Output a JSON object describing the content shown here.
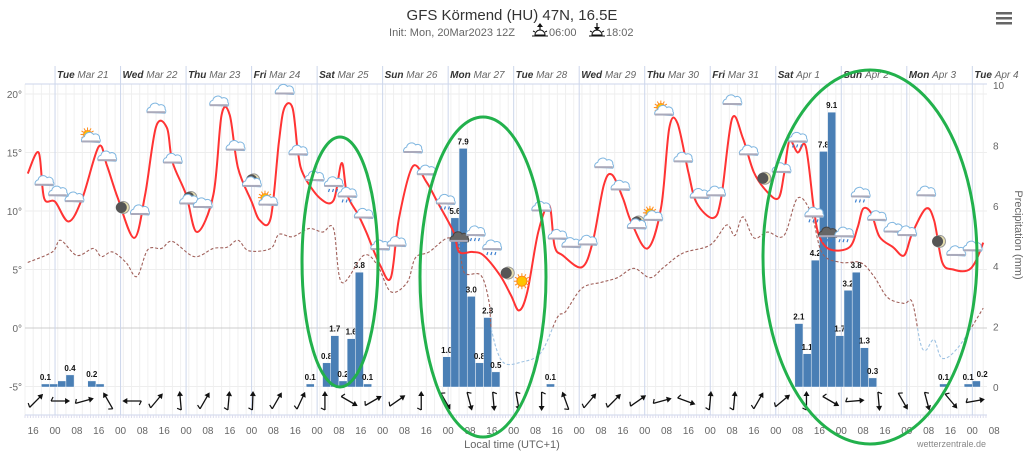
{
  "header": {
    "title": "GFS Körmend (HU) 47N, 16.5E",
    "init": "Init: Mon, 20Mar2023 12Z",
    "sunrise": "06:00",
    "sunset": "18:02",
    "menu_icon": "hamburger-menu-icon"
  },
  "footer": {
    "xlabel": "Local time (UTC+1)",
    "credit": "wetterzentrale.de"
  },
  "colors": {
    "temperature": "#ff3333",
    "dewpoint_above_zero": "#a0605a",
    "dewpoint_below_zero": "#9fc3e3",
    "precipitation": "#4a7fb5",
    "annotation": "#22b14c"
  },
  "chart_data": {
    "type": "meteogram",
    "title": "GFS Körmend (HU) 47N, 16.5E",
    "year": 2023,
    "x_range": [
      "03-20T13:00",
      "04-04T09:00"
    ],
    "x_tick_labels": [
      "16",
      "00",
      "08",
      "16",
      "00",
      "08",
      "16",
      "00",
      "08",
      "16",
      "00",
      "08",
      "16",
      "00",
      "08",
      "16",
      "00",
      "08",
      "16",
      "00",
      "08",
      "16",
      "00",
      "08",
      "16",
      "00",
      "08",
      "16",
      "00",
      "08",
      "16",
      "00",
      "08",
      "16",
      "00",
      "08",
      "16",
      "00",
      "08",
      "16",
      "00",
      "08",
      "16",
      "00",
      "08"
    ],
    "day_labels": [
      {
        "dow": "Tue",
        "date": "Mar 21"
      },
      {
        "dow": "Wed",
        "date": "Mar 22"
      },
      {
        "dow": "Thu",
        "date": "Mar 23"
      },
      {
        "dow": "Fri",
        "date": "Mar 24"
      },
      {
        "dow": "Sat",
        "date": "Mar 25"
      },
      {
        "dow": "Sun",
        "date": "Mar 26"
      },
      {
        "dow": "Mon",
        "date": "Mar 27"
      },
      {
        "dow": "Tue",
        "date": "Mar 28"
      },
      {
        "dow": "Wed",
        "date": "Mar 29"
      },
      {
        "dow": "Thu",
        "date": "Mar 30"
      },
      {
        "dow": "Fri",
        "date": "Mar 31"
      },
      {
        "dow": "Sat",
        "date": "Apr 1"
      },
      {
        "dow": "Sun",
        "date": "Apr 2"
      },
      {
        "dow": "Mon",
        "date": "Apr 3"
      },
      {
        "dow": "Tue",
        "date": "Apr 4"
      }
    ],
    "y_left": {
      "range": [
        -5,
        20
      ],
      "tick_labels": [
        "20°",
        "15°",
        "10°",
        "5°",
        "0°",
        "-5°"
      ],
      "ticks": [
        20,
        15,
        10,
        5,
        0,
        -5
      ]
    },
    "y_right": {
      "title": "Precipitation (mm)",
      "range": [
        0,
        10
      ],
      "tick_labels": [
        "10",
        "8",
        "6",
        "4",
        "2",
        "0"
      ],
      "ticks": [
        10,
        8,
        6,
        4,
        2,
        0
      ]
    },
    "grid": true,
    "temperature": [
      [
        "03-20T14:00",
        13.2
      ],
      [
        "03-20T18:00",
        15.0
      ],
      [
        "03-20T20:00",
        11.1
      ],
      [
        "03-21T00:00",
        10.8
      ],
      [
        "03-21T05:00",
        9.1
      ],
      [
        "03-21T10:00",
        11.1
      ],
      [
        "03-21T16:00",
        15.5
      ],
      [
        "03-21T19:00",
        13.9
      ],
      [
        "03-21T23:00",
        11.1
      ],
      [
        "03-22T05:00",
        7.7
      ],
      [
        "03-22T09:00",
        11.4
      ],
      [
        "03-22T13:00",
        17.2
      ],
      [
        "03-22T17:00",
        17.1
      ],
      [
        "03-22T19:00",
        14.2
      ],
      [
        "03-23T00:00",
        11.4
      ],
      [
        "03-23T04:00",
        8.2
      ],
      [
        "03-23T10:00",
        11.4
      ],
      [
        "03-23T13:00",
        18.2
      ],
      [
        "03-23T16:00",
        18.2
      ],
      [
        "03-23T19:00",
        13.7
      ],
      [
        "03-24T00:00",
        10.8
      ],
      [
        "03-24T03:00",
        9.2
      ],
      [
        "03-24T07:00",
        9.4
      ],
      [
        "03-24T10:00",
        15.9
      ],
      [
        "03-24T12:00",
        18.8
      ],
      [
        "03-24T15:00",
        18.8
      ],
      [
        "03-24T17:00",
        15.0
      ],
      [
        "03-24T19:00",
        13.1
      ],
      [
        "03-25T01:00",
        11.1
      ],
      [
        "03-25T06:00",
        10.9
      ],
      [
        "03-25T09:00",
        14.1
      ],
      [
        "03-25T11:00",
        11.4
      ],
      [
        "03-25T15:00",
        9.7
      ],
      [
        "03-25T18:00",
        8.2
      ],
      [
        "03-25T23:00",
        5.4
      ],
      [
        "03-26T03:00",
        4.3
      ],
      [
        "03-26T06:00",
        9.4
      ],
      [
        "03-26T11:00",
        13.8
      ],
      [
        "03-26T16:00",
        12.5
      ],
      [
        "03-26T20:00",
        10.8
      ],
      [
        "03-27T02:00",
        8.2
      ],
      [
        "03-27T04:00",
        6.5
      ],
      [
        "03-27T09:00",
        6.5
      ],
      [
        "03-27T13:00",
        6.2
      ],
      [
        "03-27T19:00",
        4.5
      ],
      [
        "03-27T23:00",
        2.8
      ],
      [
        "03-28T02:00",
        1.5
      ],
      [
        "03-28T05:00",
        3.1
      ],
      [
        "03-28T09:00",
        8.2
      ],
      [
        "03-28T13:00",
        10.5
      ],
      [
        "03-28T15:00",
        7.0
      ],
      [
        "03-28T18:00",
        6.2
      ],
      [
        "03-29T01:00",
        5.2
      ],
      [
        "03-29T05:00",
        7.4
      ],
      [
        "03-29T09:00",
        12.2
      ],
      [
        "03-29T12:00",
        13.1
      ],
      [
        "03-29T16:00",
        11.1
      ],
      [
        "03-29T19:00",
        9.1
      ],
      [
        "03-30T01:00",
        6.8
      ],
      [
        "03-30T06:00",
        10.3
      ],
      [
        "03-30T09:00",
        17.1
      ],
      [
        "03-30T12:00",
        17.5
      ],
      [
        "03-30T16:00",
        13.3
      ],
      [
        "03-30T19:00",
        10.7
      ],
      [
        "03-31T01:00",
        9.4
      ],
      [
        "03-31T04:00",
        11.1
      ],
      [
        "03-31T08:00",
        17.9
      ],
      [
        "03-31T12:00",
        16.2
      ],
      [
        "03-31T16:00",
        13.3
      ],
      [
        "03-31T21:00",
        11.6
      ],
      [
        "04-01T01:00",
        11.1
      ],
      [
        "04-01T03:00",
        13.1
      ],
      [
        "04-01T05:00",
        16.0
      ],
      [
        "04-01T08:00",
        15.0
      ],
      [
        "04-01T11:00",
        15.5
      ],
      [
        "04-01T14:00",
        10.1
      ],
      [
        "04-01T16:00",
        7.8
      ],
      [
        "04-01T20:00",
        6.7
      ],
      [
        "04-02T03:00",
        6.9
      ],
      [
        "04-02T06:00",
        8.6
      ],
      [
        "04-02T08:00",
        10.2
      ],
      [
        "04-02T11:00",
        9.8
      ],
      [
        "04-02T14:00",
        7.8
      ],
      [
        "04-02T19:00",
        6.9
      ],
      [
        "04-02T23:00",
        6.2
      ],
      [
        "04-03T02:00",
        8.1
      ],
      [
        "04-03T07:00",
        10.2
      ],
      [
        "04-03T10:00",
        9.2
      ],
      [
        "04-03T13:00",
        5.6
      ],
      [
        "04-03T17:00",
        5.0
      ],
      [
        "04-03T22:00",
        4.9
      ],
      [
        "04-04T01:00",
        5.6
      ],
      [
        "04-04T04:00",
        7.3
      ]
    ],
    "dewpoint": [
      [
        "03-20T14:00",
        5.6
      ],
      [
        "03-20T23:00",
        6.5
      ],
      [
        "03-21T02:00",
        7.5
      ],
      [
        "03-21T08:00",
        6.2
      ],
      [
        "03-21T14:00",
        6.8
      ],
      [
        "03-21T17:00",
        6.1
      ],
      [
        "03-21T21:00",
        6.5
      ],
      [
        "03-22T02:00",
        5.6
      ],
      [
        "03-22T06:00",
        4.4
      ],
      [
        "03-22T10:00",
        6.7
      ],
      [
        "03-22T15:00",
        6.8
      ],
      [
        "03-22T19:00",
        7.4
      ],
      [
        "03-23T03:00",
        6.1
      ],
      [
        "03-23T10:00",
        6.8
      ],
      [
        "03-23T15:00",
        6.9
      ],
      [
        "03-23T19:00",
        7.5
      ],
      [
        "03-23T23:00",
        6.6
      ],
      [
        "03-24T07:00",
        6.8
      ],
      [
        "03-24T10:00",
        8.0
      ],
      [
        "03-24T15:00",
        7.8
      ],
      [
        "03-24T21:00",
        8.5
      ],
      [
        "03-25T02:00",
        8.2
      ],
      [
        "03-25T06:00",
        8.5
      ],
      [
        "03-25T09:00",
        3.9
      ],
      [
        "03-25T17:00",
        6.2
      ],
      [
        "03-25T22:00",
        5.4
      ],
      [
        "03-26T03:00",
        3.1
      ],
      [
        "03-26T09:00",
        3.9
      ],
      [
        "03-26T12:00",
        6.0
      ],
      [
        "03-26T17:00",
        6.5
      ],
      [
        "03-27T00:00",
        7.7
      ],
      [
        "03-27T04:00",
        6.8
      ],
      [
        "03-27T06:00",
        4.7
      ],
      [
        "03-27T12:00",
        4.5
      ],
      [
        "03-27T15:00",
        2.2
      ],
      [
        "03-27T16:00",
        -0.3
      ],
      [
        "03-27T20:00",
        -2.9
      ],
      [
        "03-28T03:00",
        -2.9
      ],
      [
        "03-28T10:00",
        -2.1
      ],
      [
        "03-28T16:00",
        0.9
      ],
      [
        "03-28T19:00",
        1.4
      ],
      [
        "03-29T01:00",
        3.4
      ],
      [
        "03-29T08:00",
        3.9
      ],
      [
        "03-29T14:00",
        4.3
      ],
      [
        "03-29T20:00",
        5.1
      ],
      [
        "03-30T02:00",
        4.3
      ],
      [
        "03-30T07:00",
        5.2
      ],
      [
        "03-30T14:00",
        6.4
      ],
      [
        "03-31T00:00",
        7.1
      ],
      [
        "03-31T06:00",
        8.8
      ],
      [
        "03-31T09:00",
        7.9
      ],
      [
        "03-31T12:00",
        9.5
      ],
      [
        "03-31T16:00",
        7.7
      ],
      [
        "03-31T21:00",
        8.2
      ],
      [
        "04-01T03:00",
        7.9
      ],
      [
        "04-01T08:00",
        11.1
      ],
      [
        "04-01T13:00",
        9.8
      ],
      [
        "04-01T17:00",
        6.4
      ],
      [
        "04-02T00:00",
        5.6
      ],
      [
        "04-02T07:00",
        5.6
      ],
      [
        "04-02T12:00",
        4.4
      ],
      [
        "04-02T17:00",
        2.6
      ],
      [
        "04-02T23:00",
        2.1
      ],
      [
        "04-03T02:00",
        2.2
      ],
      [
        "04-03T05:00",
        -1.3
      ],
      [
        "04-03T07:00",
        -1.9
      ],
      [
        "04-03T10:00",
        -1.0
      ],
      [
        "04-03T13:00",
        -2.6
      ],
      [
        "04-03T19:00",
        -1.6
      ],
      [
        "04-04T04:00",
        1.7
      ]
    ],
    "precipitation_3h": [
      {
        "t": "03-20T19:00",
        "mm": 0.1,
        "label": "0.1"
      },
      {
        "t": "03-20T22:00",
        "mm": 0.1
      },
      {
        "t": "03-21T01:00",
        "mm": 0.2
      },
      {
        "t": "03-21T04:00",
        "mm": 0.4,
        "label": "0.4"
      },
      {
        "t": "03-21T12:00",
        "mm": 0.2,
        "label": "0.2"
      },
      {
        "t": "03-21T15:00",
        "mm": 0.1
      },
      {
        "t": "03-24T20:00",
        "mm": 0.1,
        "label": "0.1"
      },
      {
        "t": "03-25T02:00",
        "mm": 0.8,
        "label": "0.8"
      },
      {
        "t": "03-25T05:00",
        "mm": 1.7,
        "label": "1.7"
      },
      {
        "t": "03-25T08:00",
        "mm": 0.2,
        "label": "0.2"
      },
      {
        "t": "03-25T11:00",
        "mm": 1.6,
        "label": "1.6"
      },
      {
        "t": "03-25T14:00",
        "mm": 3.8,
        "label": "3.8"
      },
      {
        "t": "03-25T17:00",
        "mm": 0.1,
        "label": "0.1"
      },
      {
        "t": "03-26T22:00",
        "mm": 1.0,
        "label": "1.0"
      },
      {
        "t": "03-27T01:00",
        "mm": 5.6,
        "label": "5.6"
      },
      {
        "t": "03-27T04:00",
        "mm": 7.9,
        "label": "7.9"
      },
      {
        "t": "03-27T07:00",
        "mm": 3.0,
        "label": "3.0"
      },
      {
        "t": "03-27T10:00",
        "mm": 0.8,
        "label": "0.8"
      },
      {
        "t": "03-27T13:00",
        "mm": 2.3,
        "label": "2.3"
      },
      {
        "t": "03-27T16:00",
        "mm": 0.5,
        "label": "0.5"
      },
      {
        "t": "03-28T12:00",
        "mm": 0.1,
        "label": "0.1"
      },
      {
        "t": "04-01T07:00",
        "mm": 2.1,
        "label": "2.1"
      },
      {
        "t": "04-01T10:00",
        "mm": 1.1,
        "label": "1.1"
      },
      {
        "t": "04-01T13:00",
        "mm": 4.2,
        "label": "4.2"
      },
      {
        "t": "04-01T16:00",
        "mm": 7.8,
        "label": "7.8"
      },
      {
        "t": "04-01T19:00",
        "mm": 9.1,
        "label": "9.1"
      },
      {
        "t": "04-01T22:00",
        "mm": 1.7,
        "label": "1.7"
      },
      {
        "t": "04-02T01:00",
        "mm": 3.2,
        "label": "3.2"
      },
      {
        "t": "04-02T04:00",
        "mm": 3.8,
        "label": "3.8"
      },
      {
        "t": "04-02T07:00",
        "mm": 1.3,
        "label": "1.3"
      },
      {
        "t": "04-02T10:00",
        "mm": 0.3,
        "label": "0.3"
      },
      {
        "t": "04-03T12:00",
        "mm": 0.1,
        "label": "0.1"
      },
      {
        "t": "04-03T21:00",
        "mm": 0.1,
        "label": "0.1"
      },
      {
        "t": "04-04T00:00",
        "mm": 0.2,
        "label": "0.2"
      }
    ],
    "weather_symbols": [
      [
        "03-20T20:00",
        "cloudy",
        12.5
      ],
      [
        "03-21T01:00",
        "cloudy",
        11.6
      ],
      [
        "03-21T07:00",
        "cloudy",
        11.1
      ],
      [
        "03-21T13:00",
        "partly-sunny",
        16.2
      ],
      [
        "03-21T19:00",
        "cloudy",
        14.6
      ],
      [
        "03-22T01:00",
        "moon",
        10.3
      ],
      [
        "03-22T07:00",
        "cloudy",
        10.0
      ],
      [
        "03-22T13:00",
        "cloudy",
        18.7
      ],
      [
        "03-22T19:00",
        "cloudy",
        14.4
      ],
      [
        "03-23T01:00",
        "moon-cloud",
        10.9
      ],
      [
        "03-23T06:00",
        "cloudy",
        10.6
      ],
      [
        "03-23T12:00",
        "cloudy",
        19.3
      ],
      [
        "03-23T18:00",
        "cloudy",
        15.5
      ],
      [
        "03-24T00:00",
        "moon-cloud",
        12.4
      ],
      [
        "03-24T06:00",
        "partly-sunny",
        10.8
      ],
      [
        "03-24T12:00",
        "cloudy",
        20.3
      ],
      [
        "03-24T17:00",
        "cloudy",
        15.1
      ],
      [
        "03-24T23:00",
        "cloudy",
        12.9
      ],
      [
        "03-25T06:00",
        "rain",
        12.4
      ],
      [
        "03-25T11:00",
        "rain",
        11.5
      ],
      [
        "03-25T17:00",
        "cloudy",
        9.7
      ],
      [
        "03-25T23:00",
        "cloudy",
        7.0
      ],
      [
        "03-26T05:00",
        "cloudy",
        7.3
      ],
      [
        "03-26T11:00",
        "cloudy",
        15.3
      ],
      [
        "03-26T16:00",
        "cloudy",
        13.4
      ],
      [
        "03-26T23:00",
        "rain",
        10.9
      ],
      [
        "03-27T04:00",
        "heavy-rain",
        7.7
      ],
      [
        "03-27T10:00",
        "rain",
        8.2
      ],
      [
        "03-27T16:00",
        "rain",
        7.0
      ],
      [
        "03-27T22:00",
        "moon",
        4.7
      ],
      [
        "03-28T03:00",
        "sunny",
        4.0
      ],
      [
        "03-28T10:00",
        "cloudy",
        10.3
      ],
      [
        "03-28T16:00",
        "cloudy",
        7.9
      ],
      [
        "03-28T21:00",
        "cloudy",
        7.2
      ],
      [
        "03-29T03:00",
        "cloudy",
        7.4
      ],
      [
        "03-29T09:00",
        "cloudy",
        14.0
      ],
      [
        "03-29T15:00",
        "cloudy",
        12.1
      ],
      [
        "03-29T21:00",
        "moon-cloud",
        8.8
      ],
      [
        "03-30T03:00",
        "partly-sunny",
        9.5
      ],
      [
        "03-30T07:00",
        "partly-sunny",
        18.5
      ],
      [
        "03-30T14:00",
        "cloudy",
        14.5
      ],
      [
        "03-30T20:00",
        "cloudy",
        11.4
      ],
      [
        "03-31T02:00",
        "cloudy",
        11.6
      ],
      [
        "03-31T08:00",
        "cloudy",
        19.4
      ],
      [
        "03-31T14:00",
        "cloudy",
        15.1
      ],
      [
        "03-31T20:00",
        "moon",
        12.8
      ],
      [
        "04-01T02:00",
        "cloudy",
        13.6
      ],
      [
        "04-01T08:00",
        "rain",
        16.2
      ],
      [
        "04-01T14:00",
        "rain",
        9.8
      ],
      [
        "04-01T19:00",
        "heavy-rain",
        8.1
      ],
      [
        "04-02T01:00",
        "rain",
        8.1
      ],
      [
        "04-02T07:00",
        "rain",
        11.5
      ],
      [
        "04-02T13:00",
        "cloudy",
        9.5
      ],
      [
        "04-02T19:00",
        "cloudy",
        8.5
      ],
      [
        "04-03T00:00",
        "cloudy",
        8.2
      ],
      [
        "04-03T07:00",
        "cloudy",
        11.6
      ],
      [
        "04-03T12:00",
        "moon",
        7.4
      ],
      [
        "04-03T18:00",
        "cloudy",
        6.5
      ],
      [
        "04-04T00:00",
        "cloudy",
        6.9
      ]
    ],
    "wind_arrow_direction_deg": [
      45,
      90,
      75,
      330,
      270,
      40,
      355,
      30,
      5,
      2,
      30,
      25,
      0,
      120,
      60,
      55,
      0,
      150,
      165,
      175,
      170,
      180,
      340,
      40,
      45,
      55,
      75,
      110,
      5,
      5,
      30,
      50,
      0,
      120,
      85,
      175,
      150,
      165,
      140,
      80
    ]
  }
}
